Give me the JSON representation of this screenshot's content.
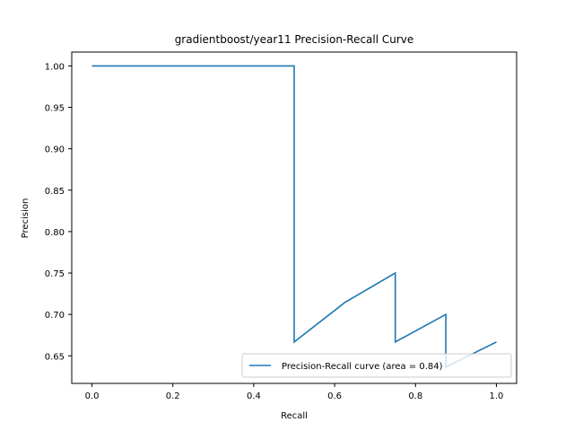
{
  "chart_data": {
    "type": "line",
    "title": "gradientboost/year11 Precision-Recall Curve",
    "xlabel": "Recall",
    "ylabel": "Precision",
    "xlim": [
      -0.05,
      1.05
    ],
    "ylim": [
      0.6167,
      1.0167
    ],
    "xticks": [
      0.0,
      0.2,
      0.4,
      0.6,
      0.8,
      1.0
    ],
    "xtick_labels": [
      "0.0",
      "0.2",
      "0.4",
      "0.6",
      "0.8",
      "1.0"
    ],
    "yticks": [
      0.65,
      0.7,
      0.75,
      0.8,
      0.85,
      0.9,
      0.95,
      1.0
    ],
    "ytick_labels": [
      "0.65",
      "0.70",
      "0.75",
      "0.80",
      "0.85",
      "0.90",
      "0.95",
      "1.00"
    ],
    "grid": false,
    "legend_position": "lower-right",
    "series": [
      {
        "name": "Precision-Recall curve (area = 0.84)",
        "color": "#1f77b4",
        "x": [
          0.0,
          0.5,
          0.5,
          0.625,
          0.75,
          0.75,
          0.875,
          0.875,
          1.0
        ],
        "y": [
          1.0,
          1.0,
          0.6667,
          0.7143,
          0.75,
          0.6667,
          0.7,
          0.6364,
          0.6667
        ]
      }
    ]
  }
}
